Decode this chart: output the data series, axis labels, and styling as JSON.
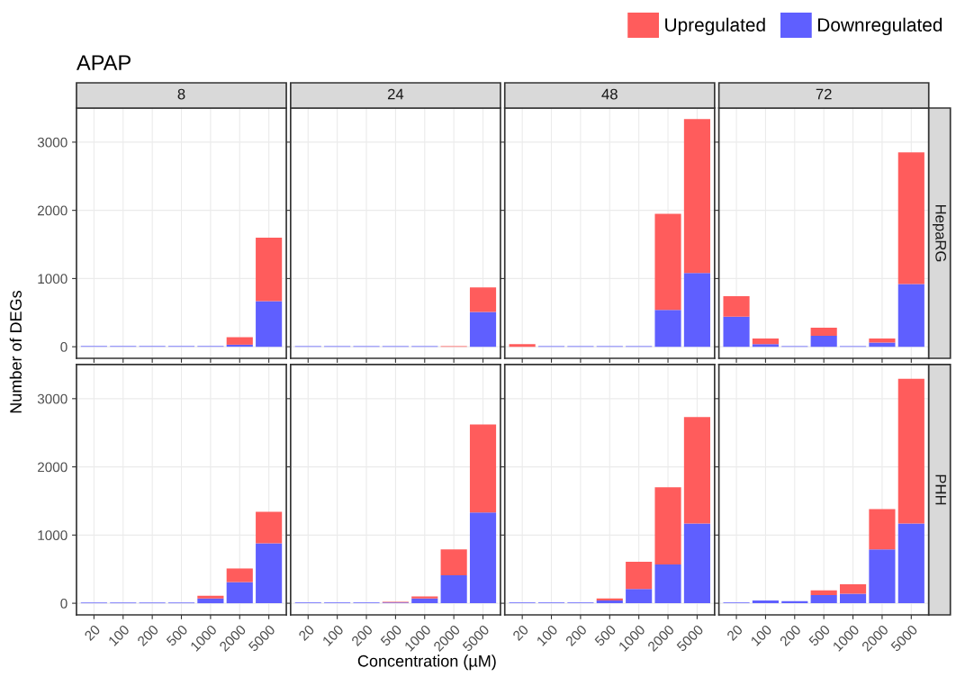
{
  "chart_data": [
    {
      "type": "bar",
      "title": "8",
      "ylabel": "Number of DEGs",
      "annotations": [
        "APAP"
      ],
      "legend": "top right",
      "tick_labels": "y",
      "stacked": true,
      "grid": true,
      "categories": [
        "20",
        "100",
        "200",
        "500",
        "1000",
        "2000",
        "5000"
      ],
      "ylim": [
        -170,
        3500
      ],
      "yticks": [
        0,
        1000,
        2000,
        3000
      ],
      "series": [
        {
          "name": "Downregulated",
          "color": "#5f5fff",
          "values": [
            10,
            10,
            10,
            10,
            10,
            30,
            670
          ]
        },
        {
          "name": "Upregulated",
          "color": "#ff5c5c",
          "values": [
            0,
            0,
            0,
            0,
            0,
            110,
            930
          ]
        }
      ]
    },
    {
      "type": "bar",
      "title": "24",
      "tick_labels": false,
      "stacked": true,
      "grid": true,
      "categories": [
        "20",
        "100",
        "200",
        "500",
        "1000",
        "2000",
        "5000"
      ],
      "ylim": [
        -170,
        3500
      ],
      "yticks": [
        0,
        1000,
        2000,
        3000
      ],
      "series": [
        {
          "color": "#5f5fff",
          "values": [
            10,
            10,
            10,
            10,
            10,
            0,
            510
          ]
        },
        {
          "color": "#ff5c5c",
          "values": [
            0,
            0,
            0,
            0,
            0,
            10,
            360
          ]
        }
      ]
    },
    {
      "type": "bar",
      "title": "48",
      "tick_labels": false,
      "stacked": true,
      "grid": true,
      "categories": [
        "20",
        "100",
        "200",
        "500",
        "1000",
        "2000",
        "5000"
      ],
      "ylim": [
        -170,
        3500
      ],
      "yticks": [
        0,
        1000,
        2000,
        3000
      ],
      "series": [
        {
          "color": "#5f5fff",
          "values": [
            0,
            10,
            10,
            10,
            10,
            540,
            1080
          ]
        },
        {
          "color": "#ff5c5c",
          "values": [
            40,
            0,
            0,
            0,
            0,
            1410,
            2260
          ]
        }
      ]
    },
    {
      "type": "bar",
      "title": "72",
      "y2label": "HepaRG",
      "tick_labels": false,
      "stacked": true,
      "grid": true,
      "categories": [
        "20",
        "100",
        "200",
        "500",
        "1000",
        "2000",
        "5000"
      ],
      "ylim": [
        -170,
        3500
      ],
      "yticks": [
        0,
        1000,
        2000,
        3000
      ],
      "series": [
        {
          "color": "#5f5fff",
          "values": [
            440,
            40,
            10,
            160,
            10,
            60,
            920
          ]
        },
        {
          "color": "#ff5c5c",
          "values": [
            300,
            80,
            0,
            120,
            0,
            60,
            1930
          ]
        }
      ]
    },
    {
      "type": "bar",
      "stacked": true,
      "grid": true,
      "categories": [
        "20",
        "100",
        "200",
        "500",
        "1000",
        "2000",
        "5000"
      ],
      "ylim": [
        -170,
        3500
      ],
      "yticks": [
        0,
        1000,
        2000,
        3000
      ],
      "series": [
        {
          "color": "#5f5fff",
          "values": [
            10,
            10,
            10,
            10,
            70,
            310,
            880
          ]
        },
        {
          "color": "#ff5c5c",
          "values": [
            0,
            0,
            0,
            0,
            40,
            200,
            460
          ]
        }
      ]
    },
    {
      "type": "bar",
      "xlabel": "Concentration (µM)",
      "tick_labels": "x",
      "stacked": true,
      "grid": true,
      "categories": [
        "20",
        "100",
        "200",
        "500",
        "1000",
        "2000",
        "5000"
      ],
      "ylim": [
        -170,
        3500
      ],
      "yticks": [
        0,
        1000,
        2000,
        3000
      ],
      "series": [
        {
          "color": "#5f5fff",
          "values": [
            10,
            10,
            10,
            10,
            70,
            410,
            1330
          ]
        },
        {
          "color": "#ff5c5c",
          "values": [
            0,
            0,
            0,
            10,
            30,
            380,
            1290
          ]
        }
      ]
    },
    {
      "type": "bar",
      "tick_labels": "x",
      "stacked": true,
      "grid": true,
      "categories": [
        "20",
        "100",
        "200",
        "500",
        "1000",
        "2000",
        "5000"
      ],
      "ylim": [
        -170,
        3500
      ],
      "yticks": [
        0,
        1000,
        2000,
        3000
      ],
      "series": [
        {
          "color": "#5f5fff",
          "values": [
            10,
            10,
            10,
            40,
            210,
            570,
            1170
          ]
        },
        {
          "color": "#ff5c5c",
          "values": [
            0,
            0,
            0,
            30,
            400,
            1130,
            1560
          ]
        }
      ]
    },
    {
      "type": "bar",
      "y2label": "PHH",
      "tick_labels": "x",
      "stacked": true,
      "grid": true,
      "categories": [
        "20",
        "100",
        "200",
        "500",
        "1000",
        "2000",
        "5000"
      ],
      "ylim": [
        -170,
        3500
      ],
      "yticks": [
        0,
        1000,
        2000,
        3000
      ],
      "series": [
        {
          "color": "#5f5fff",
          "values": [
            10,
            40,
            30,
            120,
            140,
            790,
            1170
          ]
        },
        {
          "color": "#ff5c5c",
          "values": [
            0,
            0,
            0,
            70,
            140,
            590,
            2120
          ]
        }
      ]
    }
  ]
}
